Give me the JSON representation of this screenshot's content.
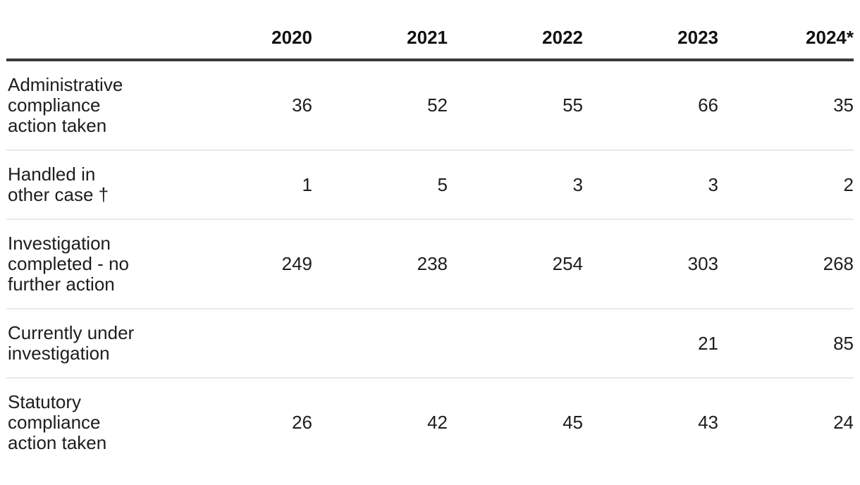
{
  "table": {
    "columns": [
      "2020",
      "2021",
      "2022",
      "2023",
      "2024*"
    ],
    "rows": [
      {
        "label": "Administrative compliance action taken",
        "label_lines": [
          "Administrative",
          "compliance",
          "action taken"
        ],
        "values": [
          "36",
          "52",
          "55",
          "66",
          "35"
        ]
      },
      {
        "label": "Handled in other case †",
        "label_lines": [
          "Handled in",
          "other case †"
        ],
        "values": [
          "1",
          "5",
          "3",
          "3",
          "2"
        ]
      },
      {
        "label": "Investigation completed - no further action",
        "label_lines": [
          "Investigation",
          "completed - no",
          "further action"
        ],
        "values": [
          "249",
          "238",
          "254",
          "303",
          "268"
        ]
      },
      {
        "label": "Currently under investigation",
        "label_lines": [
          "Currently under",
          "investigation"
        ],
        "values": [
          "",
          "",
          "",
          "21",
          "85"
        ]
      },
      {
        "label": "Statutory compliance action taken",
        "label_lines": [
          "Statutory",
          "compliance",
          "action taken"
        ],
        "values": [
          "26",
          "42",
          "45",
          "43",
          "24"
        ]
      }
    ],
    "colors": {
      "text": "#1d1d1d",
      "header_rule": "#383838",
      "row_divider": "#e9e9e9",
      "background": "#ffffff"
    }
  },
  "chart_data": {
    "type": "table",
    "categories": [
      "2020",
      "2021",
      "2022",
      "2023",
      "2024*"
    ],
    "series": [
      {
        "name": "Administrative compliance action taken",
        "values": [
          36,
          52,
          55,
          66,
          35
        ]
      },
      {
        "name": "Handled in other case †",
        "values": [
          1,
          5,
          3,
          3,
          2
        ]
      },
      {
        "name": "Investigation completed - no further action",
        "values": [
          249,
          238,
          254,
          303,
          268
        ]
      },
      {
        "name": "Currently under investigation",
        "values": [
          null,
          null,
          null,
          21,
          85
        ]
      },
      {
        "name": "Statutory compliance action taken",
        "values": [
          26,
          42,
          45,
          43,
          24
        ]
      }
    ],
    "title": "",
    "xlabel": "",
    "ylabel": "",
    "legend_position": "none",
    "grid": "row-dividers"
  }
}
